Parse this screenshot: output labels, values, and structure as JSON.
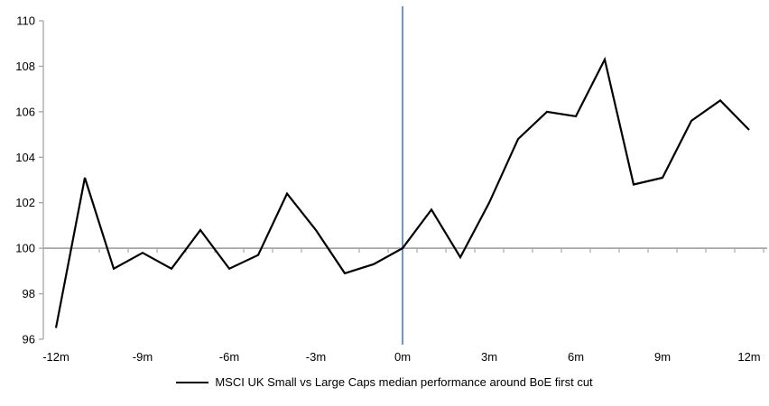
{
  "chart_data": {
    "type": "line",
    "title": "",
    "legend_label": "MSCI UK Small vs Large Caps median performance around BoE first cut",
    "x_unit_suffix": "m",
    "x_months": [
      -12,
      -11,
      -10,
      -9,
      -8,
      -7,
      -6,
      -5,
      -4,
      -3,
      -2,
      -1,
      0,
      1,
      2,
      3,
      4,
      5,
      6,
      7,
      8,
      9,
      10,
      11,
      12
    ],
    "series": [
      {
        "name": "MSCI UK Small vs Large Caps median performance around BoE first cut",
        "values": [
          96.5,
          103.1,
          99.1,
          99.8,
          99.1,
          100.8,
          99.1,
          99.7,
          102.4,
          100.8,
          98.9,
          99.3,
          100.0,
          101.7,
          99.6,
          102.0,
          104.8,
          106.0,
          105.8,
          108.3,
          102.8,
          103.1,
          105.6,
          106.5,
          105.2
        ]
      }
    ],
    "ylim": [
      96,
      110
    ],
    "yticks": [
      96,
      98,
      100,
      102,
      104,
      106,
      108,
      110
    ],
    "xtick_labels": [
      {
        "month": -12,
        "label": "-12m"
      },
      {
        "month": -9,
        "label": "-9m"
      },
      {
        "month": -6,
        "label": "-6m"
      },
      {
        "month": -3,
        "label": "-3m"
      },
      {
        "month": 0,
        "label": "0m"
      },
      {
        "month": 3,
        "label": "3m"
      },
      {
        "month": 6,
        "label": "6m"
      },
      {
        "month": 9,
        "label": "9m"
      },
      {
        "month": 12,
        "label": "12m"
      }
    ],
    "baseline_value": 100,
    "event_line_month": 0,
    "minor_tick_step_months": 1,
    "grid": "off",
    "legend_position": "bottom-center",
    "colors": {
      "series": "#000000",
      "event_line": "#4f87c4",
      "baseline": "#a6a6a6",
      "axis": "#a6a6a6",
      "tick_label": "#000000"
    }
  }
}
